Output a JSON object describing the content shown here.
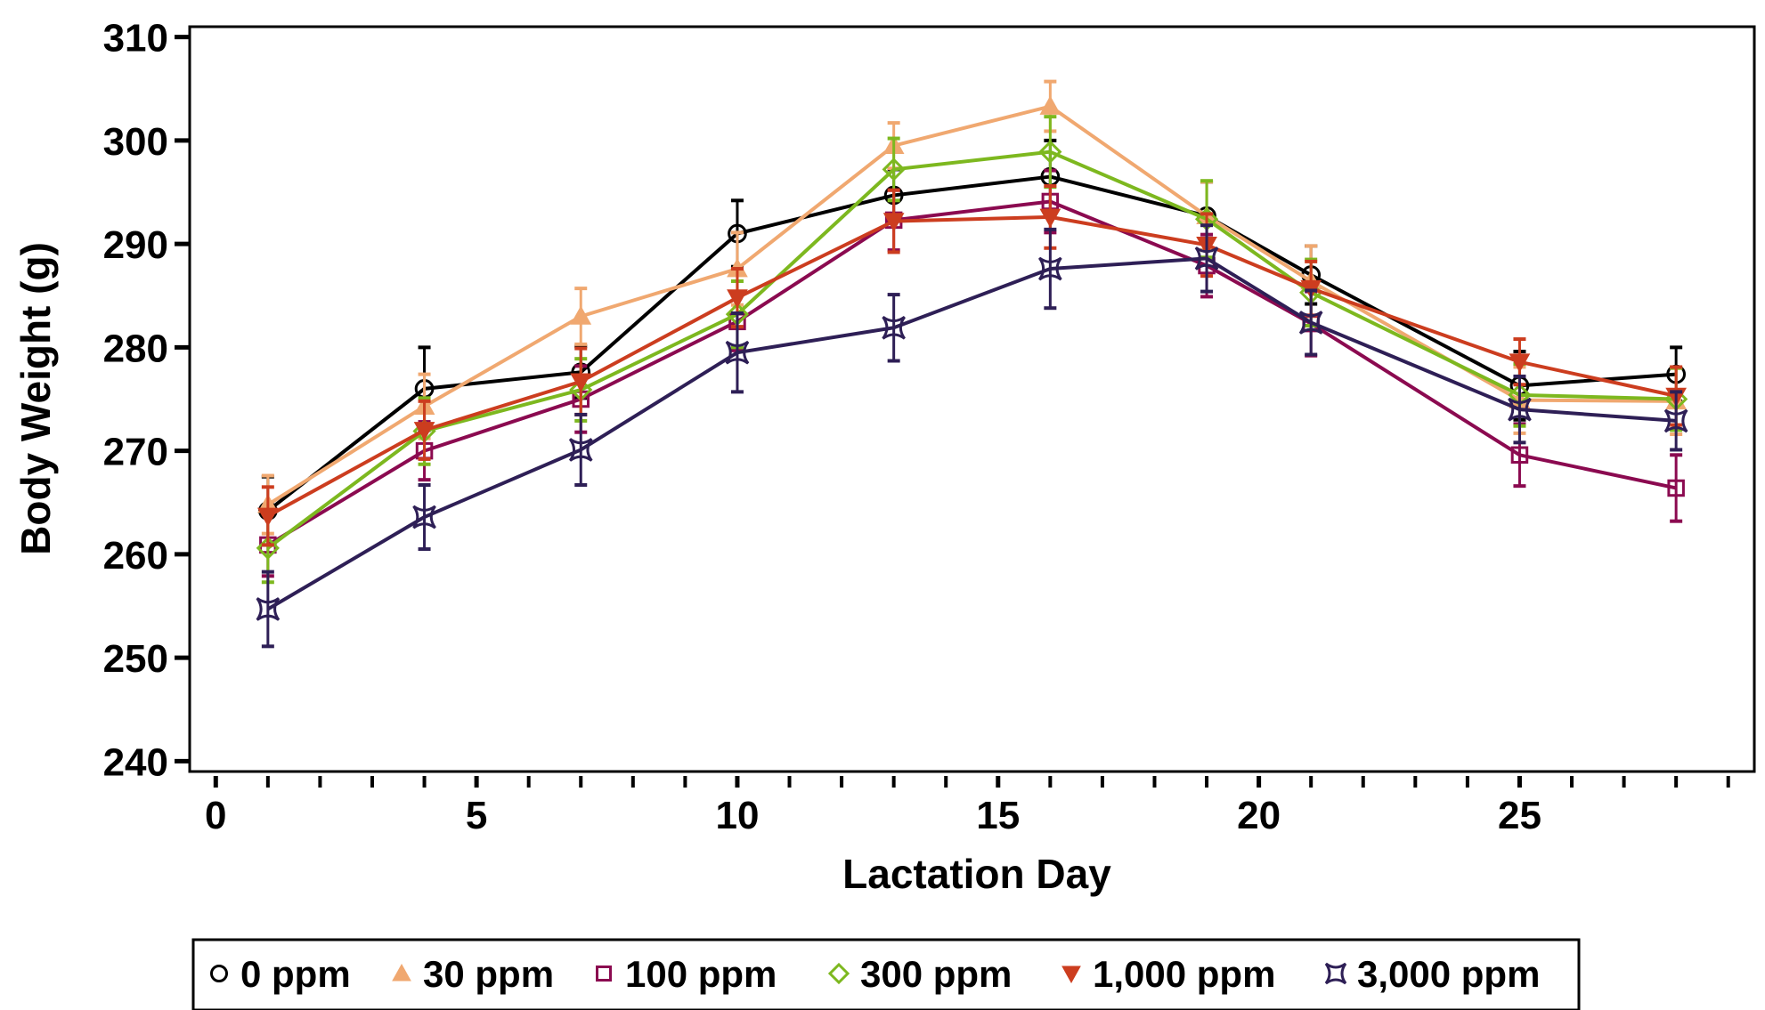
{
  "chart_data": {
    "type": "line",
    "title": "",
    "xlabel": "Lactation Day",
    "ylabel": "Body Weight (g)",
    "xlim": [
      -0.5,
      29.5
    ],
    "ylim": [
      239,
      311
    ],
    "xticks": [
      0,
      5,
      10,
      15,
      20,
      25
    ],
    "yticks": [
      240,
      250,
      260,
      270,
      280,
      290,
      300,
      310
    ],
    "x": [
      1,
      4,
      7,
      10,
      13,
      16,
      19,
      21,
      25,
      28
    ],
    "grid": false,
    "legend_position": "bottom",
    "series": [
      {
        "name": "0 ppm",
        "color": "#000000",
        "marker": "circle",
        "values": [
          264.2,
          276.0,
          277.6,
          291.0,
          294.7,
          296.5,
          292.7,
          287.0,
          276.3,
          277.4
        ],
        "errors": [
          3.3,
          4.0,
          2.5,
          3.2,
          2.5,
          3.5,
          3.3,
          2.8,
          3.3,
          2.6
        ]
      },
      {
        "name": "30 ppm",
        "color": "#f0a870",
        "marker": "triangle-up",
        "values": [
          264.8,
          274.3,
          283.0,
          287.6,
          299.5,
          303.3,
          292.7,
          286.4,
          274.9,
          274.8
        ],
        "errors": [
          2.8,
          3.1,
          2.7,
          3.5,
          2.2,
          2.4,
          3.3,
          3.4,
          3.2,
          3.2
        ]
      },
      {
        "name": "100 ppm",
        "color": "#8b0a50",
        "marker": "square",
        "values": [
          260.9,
          270.0,
          275.0,
          282.5,
          292.3,
          294.1,
          287.9,
          282.3,
          269.6,
          266.4
        ],
        "errors": [
          3.0,
          2.8,
          3.2,
          2.8,
          2.9,
          3.0,
          3.0,
          3.1,
          3.0,
          3.2
        ]
      },
      {
        "name": "300 ppm",
        "color": "#7db81f",
        "marker": "diamond",
        "values": [
          260.6,
          271.9,
          275.9,
          283.2,
          297.2,
          298.9,
          292.4,
          285.3,
          275.4,
          275.0
        ],
        "errors": [
          3.3,
          3.2,
          3.0,
          3.2,
          3.0,
          3.4,
          3.7,
          3.2,
          3.0,
          3.0
        ]
      },
      {
        "name": "1,000 ppm",
        "color": "#cc3d1f",
        "marker": "triangle-down",
        "values": [
          263.7,
          272.0,
          276.7,
          284.8,
          292.2,
          292.6,
          289.9,
          285.7,
          278.6,
          275.3
        ],
        "errors": [
          2.8,
          2.8,
          3.2,
          2.8,
          3.0,
          3.0,
          3.0,
          2.6,
          2.2,
          2.8
        ]
      },
      {
        "name": "3,000 ppm",
        "color": "#2e1f56",
        "marker": "star4",
        "values": [
          254.7,
          263.6,
          270.1,
          279.5,
          281.9,
          287.6,
          288.6,
          282.4,
          274.0,
          272.9
        ],
        "errors": [
          3.6,
          3.1,
          3.4,
          3.8,
          3.2,
          3.8,
          3.2,
          3.1,
          3.2,
          2.8
        ]
      }
    ]
  }
}
